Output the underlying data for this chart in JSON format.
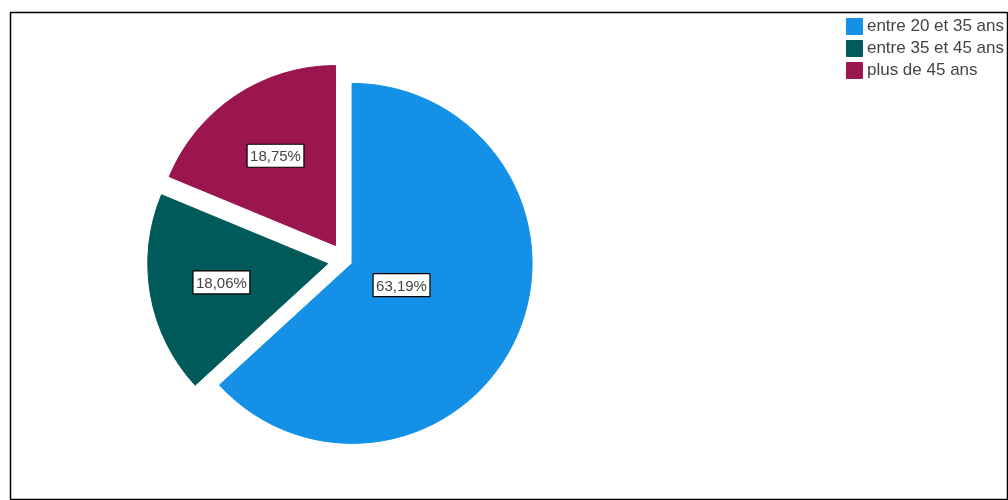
{
  "chart_data": {
    "type": "pie",
    "categories": [
      "entre 20 et 35 ans",
      "entre 35 et 45 ans",
      "plus de 45 ans"
    ],
    "values": [
      63.19,
      18.06,
      18.75
    ],
    "colors": [
      "#1491e6",
      "#005a5a",
      "#9b154f"
    ],
    "value_labels": [
      "63,19%",
      "18,06%",
      "18,75%"
    ],
    "legend": "top right"
  }
}
